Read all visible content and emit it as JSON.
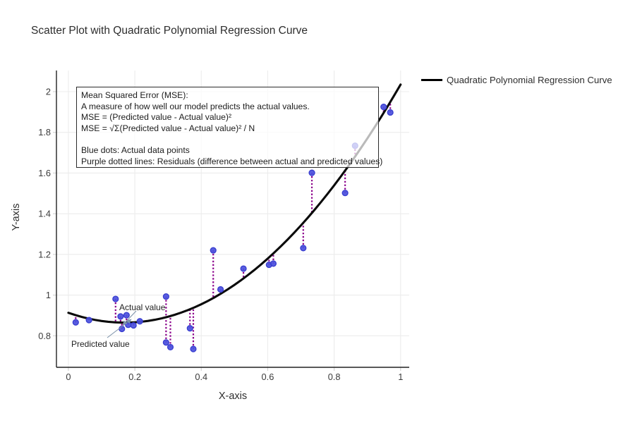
{
  "title": "Scatter Plot with Quadratic Polynomial Regression Curve",
  "legend": {
    "label": "Quadratic Polynomial Regression Curve"
  },
  "info_box": {
    "lines": [
      "Mean Squared Error (MSE):",
      "A measure of how well our model predicts the actual values.",
      "MSE = (Predicted value - Actual value)²",
      "MSE = √Σ(Predicted value - Actual value)² / N",
      "",
      "Blue dots: Actual data points",
      "Purple dotted lines: Residuals (difference between actual and predicted values)"
    ]
  },
  "annotations": {
    "actual_label": "Actual value",
    "predicted_label": "Predicted value"
  },
  "chart_data": {
    "type": "scatter",
    "title": "Scatter Plot with Quadratic Polynomial Regression Curve",
    "xlabel": "X-axis",
    "ylabel": "Y-axis",
    "xlim": [
      -0.036,
      1.026
    ],
    "ylim": [
      0.645,
      2.104
    ],
    "grid": true,
    "legend_position": "top-right",
    "x_ticks": [
      0,
      0.2,
      0.4,
      0.6,
      0.8,
      1
    ],
    "x_tick_labels": [
      "0",
      "0.2",
      "0.4",
      "0.6",
      "0.8",
      "1"
    ],
    "y_ticks": [
      0.8,
      1,
      1.2,
      1.4,
      1.6,
      1.8,
      2
    ],
    "y_tick_labels": [
      "0.8",
      "1",
      "1.2",
      "1.4",
      "1.6",
      "1.8",
      "2"
    ],
    "series": [
      {
        "name": "Actual data points",
        "type": "scatter",
        "points": [
          [
            0.022,
            0.866
          ],
          [
            0.062,
            0.877
          ],
          [
            0.142,
            0.981
          ],
          [
            0.157,
            0.895
          ],
          [
            0.175,
            0.901
          ],
          [
            0.161,
            0.834
          ],
          [
            0.18,
            0.854
          ],
          [
            0.196,
            0.851
          ],
          [
            0.215,
            0.871
          ],
          [
            0.294,
            0.993
          ],
          [
            0.294,
            0.767
          ],
          [
            0.307,
            0.744
          ],
          [
            0.366,
            0.837
          ],
          [
            0.376,
            0.735
          ],
          [
            0.436,
            1.22
          ],
          [
            0.458,
            1.028
          ],
          [
            0.527,
            1.13
          ],
          [
            0.604,
            1.149
          ],
          [
            0.617,
            1.155
          ],
          [
            0.707,
            1.231
          ],
          [
            0.733,
            1.601
          ],
          [
            0.833,
            1.502
          ],
          [
            0.863,
            1.734
          ],
          [
            0.949,
            1.925
          ],
          [
            0.969,
            1.898
          ]
        ]
      },
      {
        "name": "Quadratic Polynomial Regression Curve",
        "type": "line",
        "fit": "quadratic",
        "coefficients": {
          "c0": 0.913,
          "c1": -0.573,
          "c2": 1.695
        },
        "x_range": [
          0,
          1
        ]
      },
      {
        "name": "Residuals",
        "type": "vertical-dashed-connectors"
      }
    ],
    "colors": {
      "point_fill": "#4b50dd",
      "point_stroke": "#3a3fd0",
      "residual": "#8B008B",
      "curve": "#0a0a0a",
      "grid": "#ececec",
      "axis": "#222222",
      "tick": "#d4d4d4",
      "arrow": "#7f94ab"
    }
  }
}
